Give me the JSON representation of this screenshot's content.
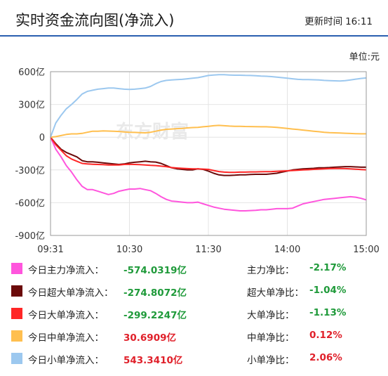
{
  "header": {
    "title": "实时资金流向图(净流入)",
    "update_label": "更新时间",
    "update_time": "16:11"
  },
  "unit_label": "单位:元",
  "watermark": "东方财富",
  "chart_data": {
    "type": "line",
    "x_ticks": [
      "09:31",
      "10:30",
      "11:30",
      "14:00",
      "15:00"
    ],
    "y_ticks": [
      "600亿",
      "300亿",
      "0",
      "-300亿",
      "-600亿",
      "-900亿"
    ],
    "ylim": [
      -900,
      600
    ],
    "grid": true,
    "colors": {
      "main": "#ff55dd",
      "super": "#6b0a0a",
      "large": "#ff2626",
      "medium": "#ffbf4f",
      "small": "#9cc8ef"
    },
    "series": [
      {
        "key": "main",
        "values": [
          0,
          -110,
          -180,
          -260,
          -320,
          -390,
          -450,
          -480,
          -480,
          -495,
          -510,
          -525,
          -515,
          -495,
          -485,
          -475,
          -475,
          -470,
          -480,
          -490,
          -515,
          -545,
          -570,
          -585,
          -590,
          -595,
          -600,
          -600,
          -595,
          -610,
          -625,
          -640,
          -650,
          -660,
          -665,
          -670,
          -675,
          -675,
          -672,
          -670,
          -665,
          -665,
          -660,
          -655,
          -655,
          -655,
          -650,
          -630,
          -610,
          -600,
          -590,
          -580,
          -570,
          -565,
          -560,
          -555,
          -550,
          -545,
          -550,
          -560,
          -574
        ]
      },
      {
        "key": "super",
        "values": [
          0,
          -60,
          -110,
          -140,
          -160,
          -180,
          -215,
          -225,
          -225,
          -230,
          -235,
          -240,
          -245,
          -250,
          -245,
          -235,
          -230,
          -225,
          -220,
          -225,
          -228,
          -240,
          -260,
          -280,
          -290,
          -295,
          -300,
          -300,
          -290,
          -295,
          -310,
          -330,
          -345,
          -350,
          -350,
          -348,
          -345,
          -345,
          -342,
          -340,
          -340,
          -340,
          -335,
          -330,
          -320,
          -310,
          -300,
          -295,
          -290,
          -288,
          -285,
          -280,
          -280,
          -278,
          -275,
          -272,
          -270,
          -270,
          -272,
          -275,
          -275
        ]
      },
      {
        "key": "large",
        "values": [
          0,
          -70,
          -120,
          -170,
          -200,
          -220,
          -240,
          -245,
          -248,
          -250,
          -252,
          -255,
          -255,
          -255,
          -250,
          -248,
          -250,
          -252,
          -255,
          -258,
          -260,
          -265,
          -270,
          -278,
          -282,
          -285,
          -288,
          -290,
          -290,
          -292,
          -295,
          -305,
          -315,
          -320,
          -322,
          -322,
          -320,
          -320,
          -318,
          -318,
          -317,
          -316,
          -315,
          -312,
          -310,
          -308,
          -305,
          -303,
          -300,
          -298,
          -295,
          -292,
          -290,
          -288,
          -287,
          -287,
          -288,
          -290,
          -293,
          -296,
          -299
        ]
      },
      {
        "key": "medium",
        "values": [
          0,
          5,
          15,
          25,
          30,
          30,
          35,
          45,
          55,
          55,
          58,
          56,
          55,
          52,
          48,
          45,
          44,
          42,
          40,
          45,
          55,
          65,
          72,
          75,
          78,
          80,
          85,
          88,
          90,
          95,
          100,
          105,
          108,
          105,
          102,
          100,
          100,
          98,
          97,
          96,
          95,
          95,
          93,
          90,
          85,
          80,
          75,
          70,
          65,
          60,
          55,
          50,
          45,
          42,
          40,
          38,
          36,
          34,
          32,
          31,
          31
        ]
      },
      {
        "key": "small",
        "values": [
          0,
          130,
          200,
          260,
          300,
          345,
          395,
          420,
          430,
          440,
          445,
          450,
          450,
          445,
          440,
          438,
          440,
          445,
          450,
          465,
          490,
          510,
          520,
          525,
          528,
          530,
          535,
          540,
          545,
          555,
          565,
          570,
          572,
          572,
          570,
          568,
          568,
          566,
          565,
          563,
          560,
          558,
          555,
          550,
          545,
          540,
          535,
          530,
          528,
          528,
          526,
          524,
          520,
          518,
          516,
          515,
          518,
          525,
          532,
          538,
          543
        ]
      }
    ]
  },
  "legend": [
    {
      "key": "main",
      "label": "今日主力净流入：",
      "value": "-574.0319亿",
      "ratio_label": "主力净比：",
      "ratio": "-2.17%",
      "sign": "neg"
    },
    {
      "key": "super",
      "label": "今日超大单净流入：",
      "value": "-274.8072亿",
      "ratio_label": "超大单净比：",
      "ratio": "-1.04%",
      "sign": "neg"
    },
    {
      "key": "large",
      "label": "今日大单净流入：",
      "value": "-299.2247亿",
      "ratio_label": "大单净比：",
      "ratio": "-1.13%",
      "sign": "neg"
    },
    {
      "key": "medium",
      "label": "今日中单净流入：",
      "value": "30.6909亿",
      "ratio_label": "中单净比：",
      "ratio": "0.12%",
      "sign": "pos"
    },
    {
      "key": "small",
      "label": "今日小单净流入：",
      "value": "543.3410亿",
      "ratio_label": "小单净比：",
      "ratio": "2.06%",
      "sign": "pos"
    }
  ]
}
